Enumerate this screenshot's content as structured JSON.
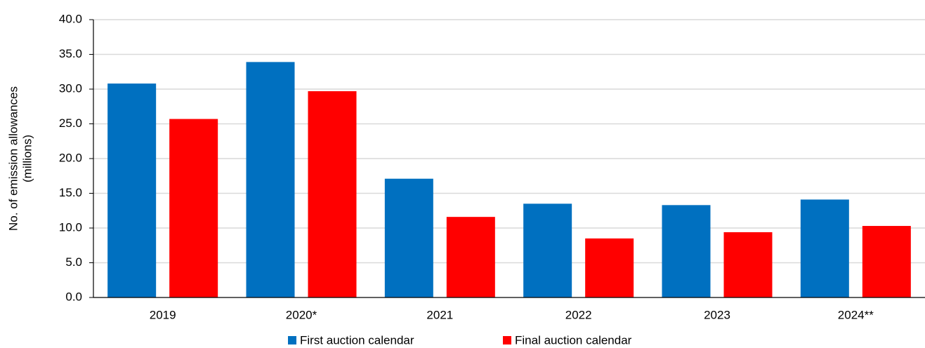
{
  "chart_data": {
    "type": "bar",
    "y_label": [
      "No. of emission allowances",
      "(millions)"
    ],
    "categories": [
      "2019",
      "2020*",
      "2021",
      "2022",
      "2023",
      "2024**"
    ],
    "series": [
      {
        "name": "First auction calendar",
        "color": "#0070c0",
        "values": [
          30.8,
          33.9,
          17.1,
          13.5,
          13.3,
          14.1
        ]
      },
      {
        "name": "Final auction calendar",
        "color": "#ff0000",
        "values": [
          25.7,
          29.7,
          11.6,
          8.5,
          9.4,
          10.3
        ]
      }
    ],
    "ylim": [
      0,
      40
    ],
    "yticks": [
      {
        "value": 0,
        "label": "0.0"
      },
      {
        "value": 5,
        "label": "5.0"
      },
      {
        "value": 10,
        "label": "10.0"
      },
      {
        "value": 15,
        "label": "15.0"
      },
      {
        "value": 20,
        "label": "20.0"
      },
      {
        "value": 25,
        "label": "25.0"
      },
      {
        "value": 30,
        "label": "30.0"
      },
      {
        "value": 35,
        "label": "35.0"
      },
      {
        "value": 40,
        "label": "40.0"
      }
    ],
    "grid": true,
    "legend": "bottom"
  }
}
